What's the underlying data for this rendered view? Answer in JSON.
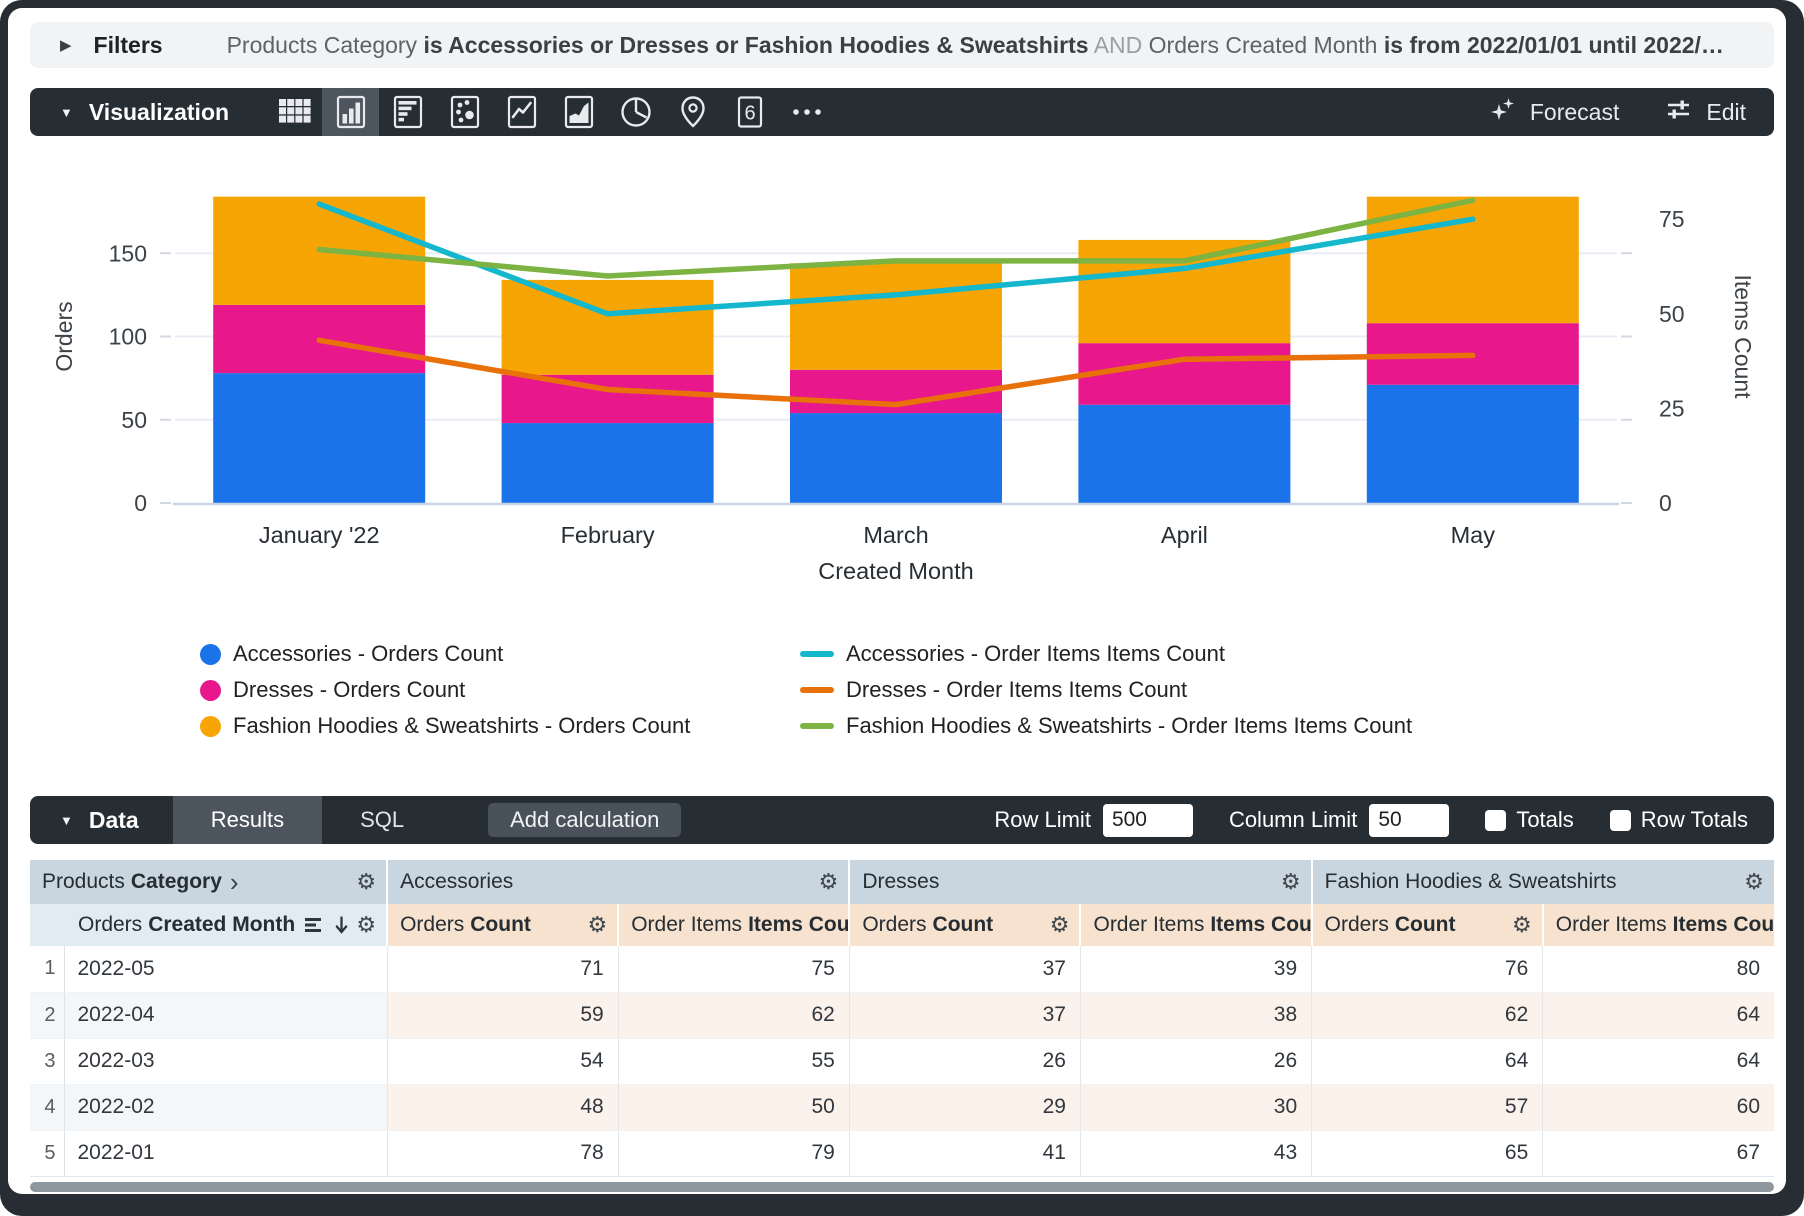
{
  "filters_bar": {
    "label": "Filters",
    "segments": [
      {
        "text": "Products Category ",
        "style": "normal"
      },
      {
        "text": "is Accessories or Dresses or Fashion Hoodies & Sweatshirts",
        "style": "bold"
      },
      {
        "text": " AND ",
        "style": "and"
      },
      {
        "text": "Orders Created Month ",
        "style": "normal"
      },
      {
        "text": "is from 2022/01/01 until 2022/…",
        "style": "bold"
      }
    ]
  },
  "viz_bar": {
    "label": "Visualization",
    "icons": [
      {
        "name": "table",
        "selected": false
      },
      {
        "name": "column",
        "selected": true
      },
      {
        "name": "bar",
        "selected": false
      },
      {
        "name": "scatter",
        "selected": false
      },
      {
        "name": "line",
        "selected": false
      },
      {
        "name": "area",
        "selected": false
      },
      {
        "name": "pie",
        "selected": false
      },
      {
        "name": "map",
        "selected": false
      },
      {
        "name": "single-value",
        "selected": false,
        "glyph": "6"
      },
      {
        "name": "more",
        "selected": false
      }
    ],
    "forecast_label": "Forecast",
    "edit_label": "Edit"
  },
  "chart_data": {
    "type": "bar",
    "subtype": "stacked-column-with-lines",
    "categories": [
      "January '22",
      "February",
      "March",
      "April",
      "May"
    ],
    "x_axis_label": "Created Month",
    "left_axis": {
      "label": "Orders",
      "ticks": [
        0,
        50,
        100,
        150
      ],
      "range": [
        0,
        200
      ]
    },
    "right_axis": {
      "label": "Items Count",
      "ticks": [
        0,
        25,
        50,
        75
      ],
      "range": [
        0,
        88
      ]
    },
    "bar_series": [
      {
        "name": "Accessories - Orders Count",
        "color": "#1A73E8",
        "values": [
          78,
          48,
          54,
          59,
          71
        ]
      },
      {
        "name": "Dresses - Orders Count",
        "color": "#E8178C",
        "values": [
          41,
          29,
          26,
          37,
          37
        ]
      },
      {
        "name": "Fashion Hoodies & Sweatshirts - Orders Count",
        "color": "#F6A504",
        "values": [
          65,
          57,
          64,
          62,
          76
        ]
      }
    ],
    "line_series": [
      {
        "name": "Accessories - Order Items Items Count",
        "color": "#14B7CC",
        "values": [
          79,
          50,
          55,
          62,
          75
        ]
      },
      {
        "name": "Dresses - Order Items Items Count",
        "color": "#E8710A",
        "values": [
          43,
          30,
          26,
          38,
          39
        ]
      },
      {
        "name": "Fashion Hoodies & Sweatshirts - Order Items Items Count",
        "color": "#7CB342",
        "values": [
          67,
          60,
          64,
          64,
          80
        ]
      }
    ],
    "grid": true,
    "legend_position": "bottom"
  },
  "data_panel": {
    "label": "Data",
    "tabs": [
      "Results",
      "SQL"
    ],
    "active_tab": "Results",
    "add_calculation_label": "Add calculation",
    "row_limit_label": "Row Limit",
    "row_limit_value": "500",
    "column_limit_label": "Column Limit",
    "column_limit_value": "50",
    "totals_label": "Totals",
    "totals_checked": false,
    "row_totals_label": "Row Totals",
    "row_totals_checked": false
  },
  "table": {
    "pivot_header": {
      "dimension": {
        "view": "Products",
        "field": "Category"
      },
      "groups": [
        "Accessories",
        "Dresses",
        "Fashion Hoodies & Sweatshirts"
      ]
    },
    "row_header": {
      "view": "Orders",
      "field": "Created Month"
    },
    "measures": [
      {
        "view": "Orders",
        "field": "Count"
      },
      {
        "view": "Order Items",
        "field": "Items Count"
      }
    ],
    "rows": [
      {
        "index": 1,
        "month": "2022-05",
        "values": [
          71,
          75,
          37,
          39,
          76,
          80
        ]
      },
      {
        "index": 2,
        "month": "2022-04",
        "values": [
          59,
          62,
          37,
          38,
          62,
          64
        ]
      },
      {
        "index": 3,
        "month": "2022-03",
        "values": [
          54,
          55,
          26,
          26,
          64,
          64
        ]
      },
      {
        "index": 4,
        "month": "2022-02",
        "values": [
          48,
          50,
          29,
          30,
          57,
          60
        ]
      },
      {
        "index": 5,
        "month": "2022-01",
        "values": [
          78,
          79,
          41,
          43,
          65,
          67
        ]
      }
    ]
  }
}
